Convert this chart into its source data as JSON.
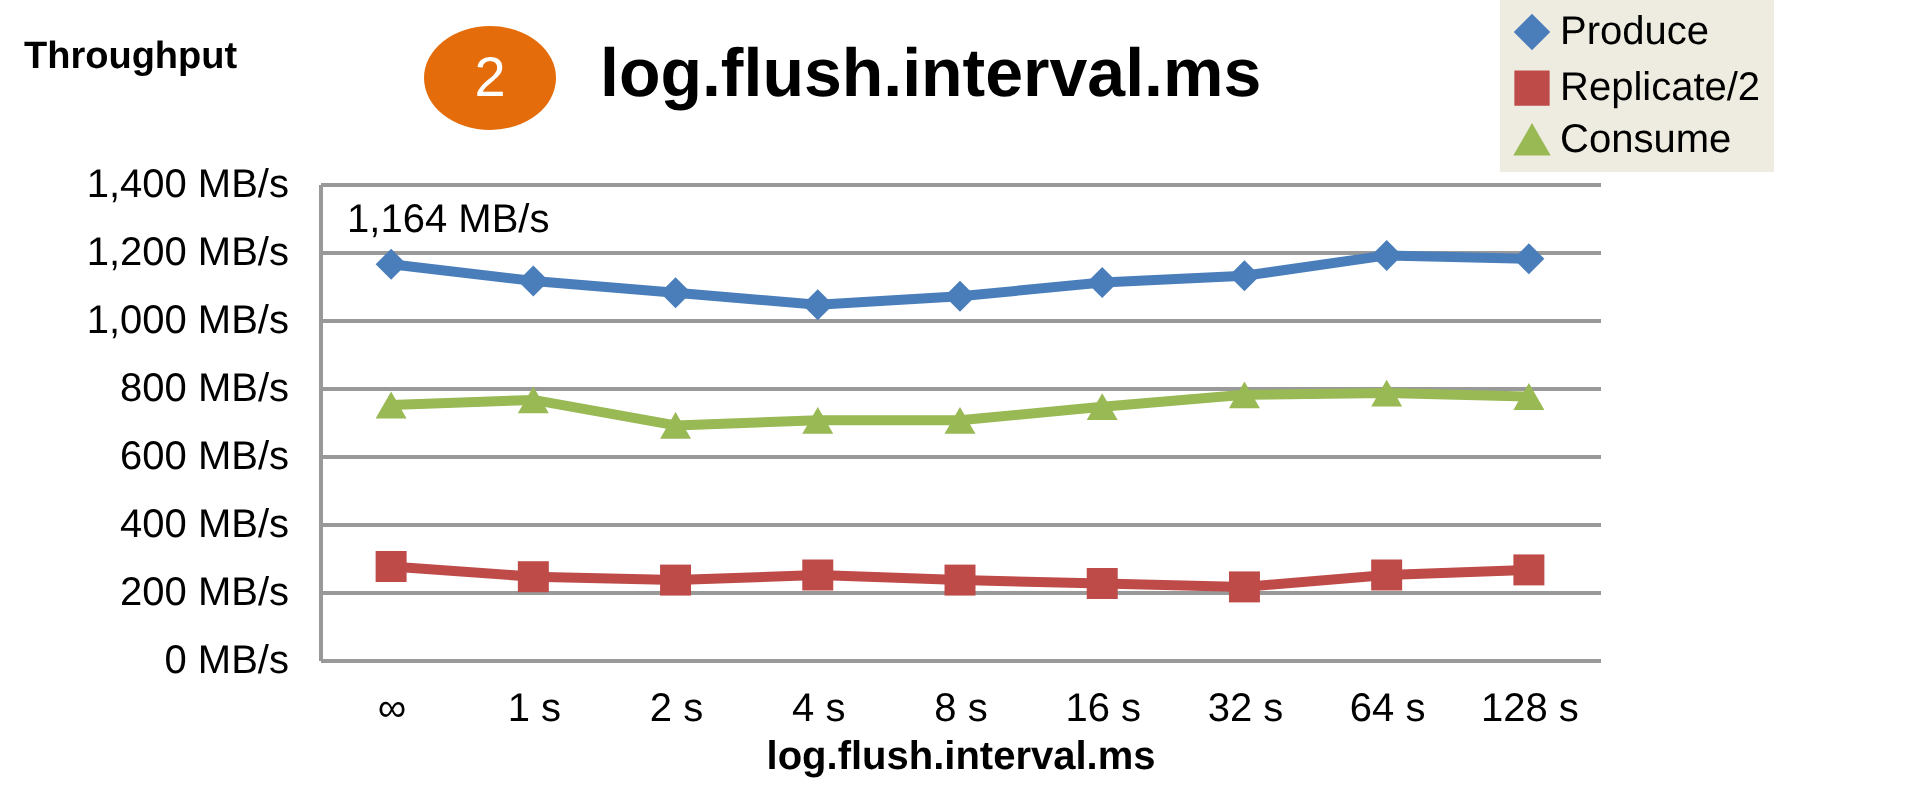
{
  "chart_data": {
    "type": "line",
    "title": "log.flush.interval.ms",
    "ylabel": "Throughput",
    "xlabel": "log.flush.interval.ms",
    "annotations": [
      "2",
      {
        "text": "1,164 MB/s",
        "x": "∞",
        "y": 1164
      }
    ],
    "categories": [
      "∞",
      "1 s",
      "2 s",
      "4 s",
      "8 s",
      "16 s",
      "32 s",
      "64 s",
      "128 s"
    ],
    "series": [
      {
        "name": "Produce",
        "color": "#4a7ebb",
        "marker": "diamond",
        "values": [
          1164,
          1115,
          1080,
          1045,
          1070,
          1110,
          1130,
          1190,
          1180
        ]
      },
      {
        "name": "Replicate/2",
        "color": "#be4b48",
        "marker": "square",
        "values": [
          275,
          245,
          235,
          250,
          235,
          225,
          215,
          250,
          265
        ]
      },
      {
        "name": "Consume",
        "color": "#98b954",
        "marker": "triangle",
        "values": [
          750,
          765,
          690,
          705,
          705,
          745,
          780,
          785,
          775
        ]
      }
    ],
    "ylim": [
      0,
      1400
    ],
    "yticks": [
      {
        "value": 0,
        "label": "0 MB/s"
      },
      {
        "value": 200,
        "label": "200 MB/s"
      },
      {
        "value": 400,
        "label": "400 MB/s"
      },
      {
        "value": 600,
        "label": "600 MB/s"
      },
      {
        "value": 800,
        "label": "800 MB/s"
      },
      {
        "value": 1000,
        "label": "1,000 MB/s"
      },
      {
        "value": 1200,
        "label": "1,200 MB/s"
      },
      {
        "value": 1400,
        "label": "1,400 MB/s"
      }
    ],
    "grid": "y",
    "legend": "top right"
  }
}
